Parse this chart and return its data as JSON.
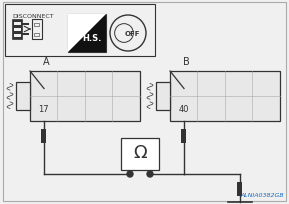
{
  "bg_color": "#f0f0f0",
  "line_color": "#333333",
  "box_fill": "#e8e8e8",
  "white": "#ffffff",
  "black": "#111111",
  "disconnect_text": "DISCONNECT",
  "label_A": "A",
  "label_B": "B",
  "pin_17": "17",
  "pin_40": "40",
  "watermark": "ALNIA0382GB",
  "watermark_color": "#1a6abf",
  "grid_color": "#aaaaaa",
  "omega": "Ω"
}
